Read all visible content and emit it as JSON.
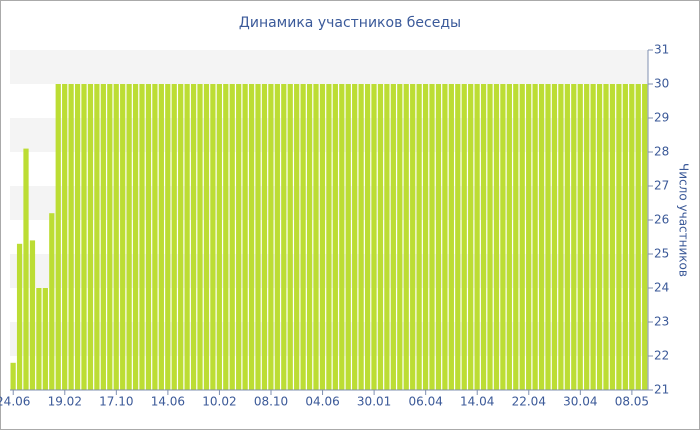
{
  "chart_data": {
    "type": "bar",
    "title": "Динамика участников беседы",
    "y_label": "Число участников",
    "color": "#bcdd34",
    "ylim": [
      21,
      31
    ],
    "yticks": [
      21,
      22,
      23,
      24,
      25,
      26,
      27,
      28,
      29,
      30,
      31
    ],
    "grid": true,
    "categories": [
      "24.06",
      null,
      null,
      null,
      null,
      null,
      null,
      null,
      "19.02",
      null,
      null,
      null,
      null,
      null,
      null,
      null,
      "17.10",
      null,
      null,
      null,
      null,
      null,
      null,
      null,
      "14.06",
      null,
      null,
      null,
      null,
      null,
      null,
      null,
      "10.02",
      null,
      null,
      null,
      null,
      null,
      null,
      null,
      "08.10",
      null,
      null,
      null,
      null,
      null,
      null,
      null,
      "04.06",
      null,
      null,
      null,
      null,
      null,
      null,
      null,
      "30.01",
      null,
      null,
      null,
      null,
      null,
      null,
      null,
      "06.04",
      null,
      null,
      null,
      null,
      null,
      null,
      null,
      "14.04",
      null,
      null,
      null,
      null,
      null,
      null,
      null,
      "22.04",
      null,
      null,
      null,
      null,
      null,
      null,
      null,
      "30.04",
      null,
      null,
      null,
      null,
      null,
      null,
      null,
      "08.05",
      null,
      null
    ],
    "values": [
      21.8,
      25.3,
      28.1,
      25.4,
      24,
      24,
      26.2,
      30,
      30,
      30,
      30,
      30,
      30,
      30,
      30,
      30,
      30,
      30,
      30,
      30,
      30,
      30,
      30,
      30,
      30,
      30,
      30,
      30,
      30,
      30,
      30,
      30,
      30,
      30,
      30,
      30,
      30,
      30,
      30,
      30,
      30,
      30,
      30,
      30,
      30,
      30,
      30,
      30,
      30,
      30,
      30,
      30,
      30,
      30,
      30,
      30,
      30,
      30,
      30,
      30,
      30,
      30,
      30,
      30,
      30,
      30,
      30,
      30,
      30,
      30,
      30,
      30,
      30,
      30,
      30,
      30,
      30,
      30,
      30,
      30,
      30,
      30,
      30,
      30,
      30,
      30,
      30,
      30,
      30,
      30,
      30,
      30,
      30,
      30,
      30,
      30,
      30,
      30,
      30
    ]
  }
}
